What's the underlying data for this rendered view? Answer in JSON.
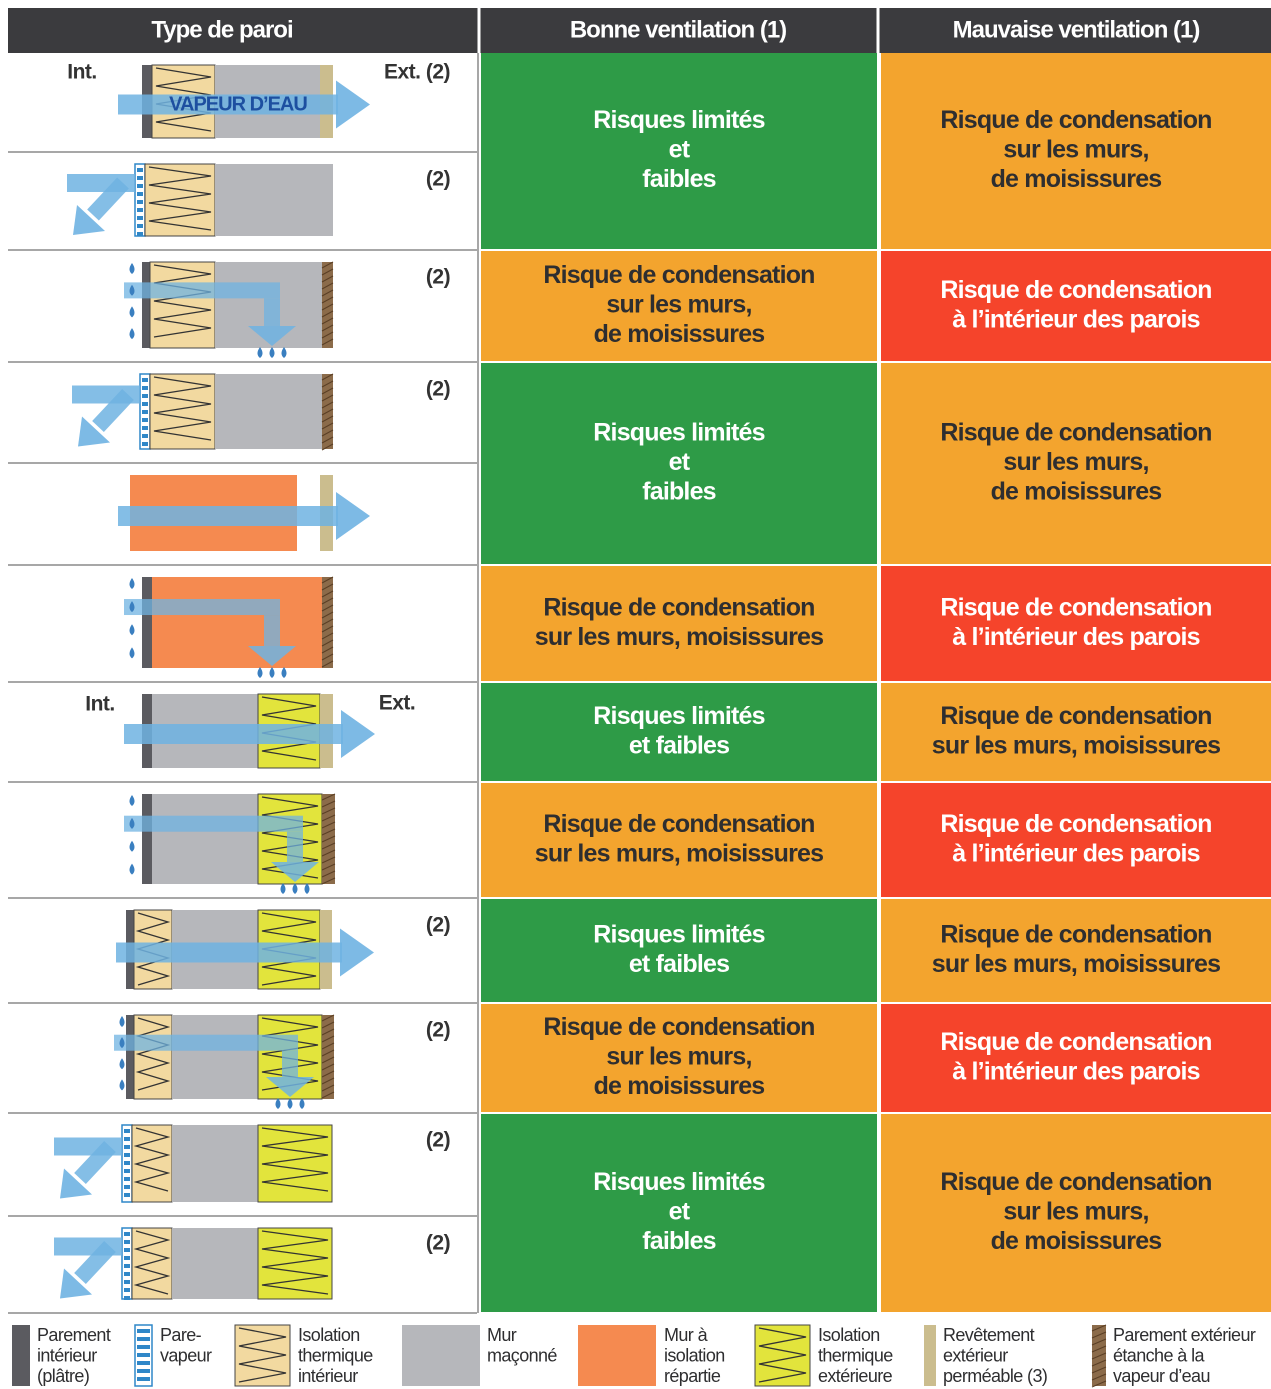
{
  "header": [
    "Type de paroi",
    "Bonne ventilation (1)",
    "Mauvaise ventilation (1)"
  ],
  "diagram_labels": [
    [
      "Int.",
      "Ext. (2)",
      "VAPEUR D’EAU"
    ],
    [
      "(2)"
    ],
    [
      "(2)"
    ],
    [
      "(2)"
    ],
    [],
    [],
    [
      "Int.",
      "Ext."
    ],
    [],
    [
      "(2)"
    ],
    [
      "(2)"
    ],
    [
      "(2)"
    ],
    [
      "(2)"
    ]
  ],
  "good": [
    {
      "color": "green",
      "lines": [
        "Risques limités",
        "et",
        "faibles"
      ]
    },
    {
      "color": "orange",
      "lines": [
        "Risque de condensation",
        "sur les murs,",
        "de moisissures"
      ]
    },
    {
      "color": "green",
      "lines": [
        "Risques limités",
        "et",
        "faibles"
      ]
    },
    {
      "color": "orange",
      "lines": [
        "Risque de condensation",
        "sur les murs, moisissures"
      ]
    },
    {
      "color": "green",
      "lines": [
        "Risques limités",
        "et faibles"
      ]
    },
    {
      "color": "orange",
      "lines": [
        "Risque de condensation",
        "sur les murs, moisissures"
      ]
    },
    {
      "color": "green",
      "lines": [
        "Risques limités",
        "et faibles"
      ]
    },
    {
      "color": "orange",
      "lines": [
        "Risque de condensation",
        "sur les murs,",
        "de moisissures"
      ]
    },
    {
      "color": "green",
      "lines": [
        "Risques limités",
        "et",
        "faibles"
      ]
    }
  ],
  "bad": [
    {
      "color": "orange",
      "lines": [
        "Risque de condensation",
        "sur les murs,",
        "de moisissures"
      ]
    },
    {
      "color": "red",
      "lines": [
        "Risque de condensation",
        "à l’intérieur des parois"
      ]
    },
    {
      "color": "orange",
      "lines": [
        "Risque de condensation",
        "sur les murs,",
        "de moisissures"
      ]
    },
    {
      "color": "red",
      "lines": [
        "Risque de condensation",
        "à l’intérieur des parois"
      ]
    },
    {
      "color": "orange",
      "lines": [
        "Risque de condensation",
        "sur les murs, moisissures"
      ]
    },
    {
      "color": "red",
      "lines": [
        "Risque de condensation",
        "à l’intérieur des parois"
      ]
    },
    {
      "color": "orange",
      "lines": [
        "Risque de condensation",
        "sur les murs, moisissures"
      ]
    },
    {
      "color": "red",
      "lines": [
        "Risque de condensation",
        "à l’intérieur des parois"
      ]
    },
    {
      "color": "orange",
      "lines": [
        "Risque de condensation",
        "sur les murs,",
        "de moisissures"
      ]
    }
  ],
  "legend": [
    [
      "Parement",
      "intérieur",
      "(plâtre)"
    ],
    [
      "Pare-",
      "vapeur"
    ],
    [
      "Isolation",
      "thermique",
      "intérieur"
    ],
    [
      "Mur",
      "maçonné"
    ],
    [
      "Mur à",
      "isolation",
      "répartie"
    ],
    [
      "Isolation",
      "thermique",
      "extérieure"
    ],
    [
      "Revêtement",
      "extérieur",
      "perméable (3)"
    ],
    [
      "Parement extérieur",
      "étanche à la",
      "vapeur d’eau"
    ]
  ]
}
